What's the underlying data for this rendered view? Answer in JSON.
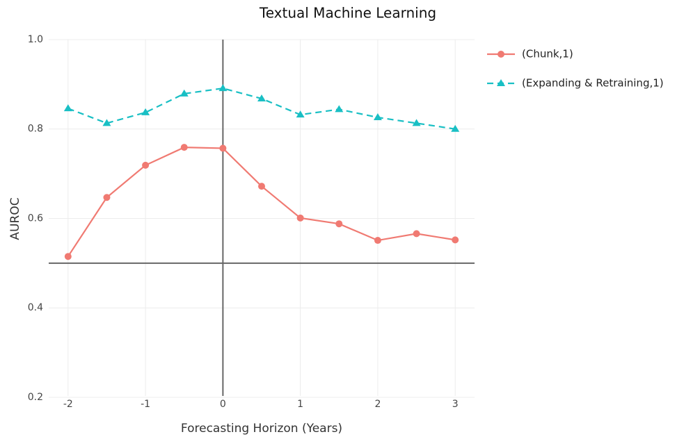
{
  "chart_data": {
    "type": "line",
    "title": "Textual Machine Learning",
    "x_label": "Forecasting Horizon (Years)",
    "y_label": "AUROC",
    "x": [
      -2,
      -1.5,
      -1,
      -0.5,
      0,
      0.5,
      1,
      1.5,
      2,
      2.5,
      3
    ],
    "series": [
      {
        "name": "(Chunk,1)",
        "color": "#f07a72",
        "marker": "circle",
        "dash": false,
        "values": [
          0.515,
          0.647,
          0.719,
          0.759,
          0.757,
          0.672,
          0.601,
          0.588,
          0.551,
          0.566,
          0.552
        ]
      },
      {
        "name": "(Expanding & Retraining,1)",
        "color": "#19bfc4",
        "marker": "triangle",
        "dash": true,
        "values": [
          0.846,
          0.813,
          0.837,
          0.879,
          0.891,
          0.868,
          0.832,
          0.844,
          0.826,
          0.813,
          0.8
        ]
      }
    ],
    "xlim": [
      -2.25,
      3.25
    ],
    "xticks": [
      -2,
      -1,
      0,
      1,
      2,
      3
    ],
    "ylim": [
      0.172,
      1.0
    ],
    "yticks": [
      0.2,
      0.4,
      0.6,
      0.8,
      {
        "value": 1,
        "label": "1.0"
      }
    ],
    "hline": 0.5,
    "vline": 0,
    "grid": true,
    "legend": "right"
  }
}
